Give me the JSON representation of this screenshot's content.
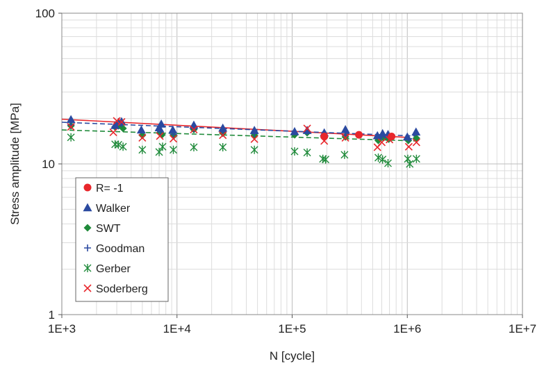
{
  "chart_data": {
    "type": "scatter",
    "xlabel": "N [cycle]",
    "ylabel": "Stress amplitude [MPa]",
    "x_scale": "log",
    "y_scale": "log",
    "xlim": [
      1000,
      10000000
    ],
    "ylim": [
      1,
      100
    ],
    "x_ticks": [
      1000,
      10000,
      100000,
      1000000,
      10000000
    ],
    "x_tick_labels": [
      "1E+3",
      "1E+4",
      "1E+5",
      "1E+6",
      "1E+7"
    ],
    "y_ticks": [
      1,
      10,
      100
    ],
    "y_tick_labels": [
      "1",
      "10",
      "100"
    ],
    "grid": true,
    "legend_position": "bottom-left",
    "series": [
      {
        "name": "R= -1",
        "marker": "circle",
        "color": "#e8262b",
        "points": [
          [
            190000,
            15.2
          ],
          [
            380000,
            15.6
          ],
          [
            730000,
            15.2
          ]
        ],
        "trend": {
          "style": "solid",
          "from": [
            1000,
            19.8
          ],
          "to": [
            1000000,
            15.0
          ]
        }
      },
      {
        "name": "Walker",
        "marker": "triangle",
        "color": "#2b4aa0",
        "points": [
          [
            1200,
            19.7
          ],
          [
            2900,
            18.0
          ],
          [
            3100,
            18.9
          ],
          [
            3300,
            19.1
          ],
          [
            4900,
            16.8
          ],
          [
            7000,
            17.4
          ],
          [
            7300,
            18.4
          ],
          [
            9200,
            16.8
          ],
          [
            14000,
            18.1
          ],
          [
            25000,
            17.3
          ],
          [
            47000,
            16.7
          ],
          [
            105000,
            16.4
          ],
          [
            135000,
            16.7
          ],
          [
            190000,
            16.1
          ],
          [
            290000,
            16.9
          ],
          [
            550000,
            15.4
          ],
          [
            610000,
            15.9
          ],
          [
            680000,
            15.7
          ],
          [
            1000000,
            15.1
          ],
          [
            1190000,
            16.3
          ]
        ],
        "trend": {
          "style": "dash",
          "from": [
            1000,
            18.9
          ],
          "to": [
            1200000,
            15.3
          ]
        }
      },
      {
        "name": "SWT",
        "marker": "diamond",
        "color": "#1f8a3a",
        "points": [
          [
            1200,
            17.9
          ],
          [
            2900,
            17.6
          ],
          [
            3100,
            17.9
          ],
          [
            3400,
            17.2
          ],
          [
            5000,
            15.5
          ],
          [
            7100,
            16.1
          ],
          [
            7400,
            15.6
          ],
          [
            9400,
            15.4
          ],
          [
            14000,
            16.9
          ],
          [
            25000,
            16.0
          ],
          [
            47000,
            15.5
          ],
          [
            105000,
            15.6
          ],
          [
            135000,
            16.1
          ],
          [
            190000,
            15.0
          ],
          [
            290000,
            15.1
          ],
          [
            560000,
            14.3
          ],
          [
            620000,
            14.9
          ],
          [
            690000,
            14.6
          ],
          [
            1020000,
            14.3
          ],
          [
            1200000,
            14.8
          ]
        ],
        "trend": {
          "style": "dash",
          "from": [
            1000,
            16.8
          ],
          "to": [
            1200000,
            14.2
          ]
        }
      },
      {
        "name": "Goodman",
        "marker": "plus",
        "color": "#2b4aa0",
        "points": [
          [
            1200,
            18.1
          ],
          [
            3000,
            18.2
          ],
          [
            3300,
            18.5
          ],
          [
            7200,
            16.3
          ],
          [
            9300,
            15.7
          ],
          [
            14000,
            17.1
          ],
          [
            25000,
            16.3
          ],
          [
            47000,
            15.9
          ],
          [
            135000,
            16.4
          ],
          [
            190000,
            15.3
          ],
          [
            290000,
            15.5
          ],
          [
            600000,
            15.2
          ],
          [
            1030000,
            14.7
          ]
        ]
      },
      {
        "name": "Gerber",
        "marker": "asterisk",
        "color": "#1f8a3a",
        "points": [
          [
            1200,
            15.0
          ],
          [
            2900,
            13.5
          ],
          [
            3100,
            13.4
          ],
          [
            3400,
            13.0
          ],
          [
            5000,
            12.4
          ],
          [
            7000,
            12.0
          ],
          [
            7500,
            13.0
          ],
          [
            9300,
            12.4
          ],
          [
            14000,
            12.9
          ],
          [
            25000,
            12.9
          ],
          [
            47000,
            12.4
          ],
          [
            105000,
            12.1
          ],
          [
            135000,
            11.9
          ],
          [
            185000,
            10.8
          ],
          [
            195000,
            10.7
          ],
          [
            285000,
            11.5
          ],
          [
            560000,
            11.0
          ],
          [
            610000,
            10.7
          ],
          [
            680000,
            10.1
          ],
          [
            1010000,
            10.8
          ],
          [
            1050000,
            10.0
          ],
          [
            1200000,
            10.8
          ]
        ]
      },
      {
        "name": "Soderberg",
        "marker": "cross",
        "color": "#e8262b",
        "points": [
          [
            1200,
            17.6
          ],
          [
            3000,
            19.3
          ],
          [
            3300,
            19.0
          ],
          [
            2800,
            16.2
          ],
          [
            5000,
            14.9
          ],
          [
            7100,
            15.3
          ],
          [
            9300,
            14.7
          ],
          [
            14000,
            16.9
          ],
          [
            25000,
            15.5
          ],
          [
            47000,
            14.6
          ],
          [
            135000,
            17.2
          ],
          [
            190000,
            14.2
          ],
          [
            290000,
            14.9
          ],
          [
            550000,
            12.9
          ],
          [
            600000,
            13.9
          ],
          [
            700000,
            14.5
          ],
          [
            1030000,
            13.0
          ],
          [
            1200000,
            13.9
          ]
        ]
      }
    ]
  }
}
